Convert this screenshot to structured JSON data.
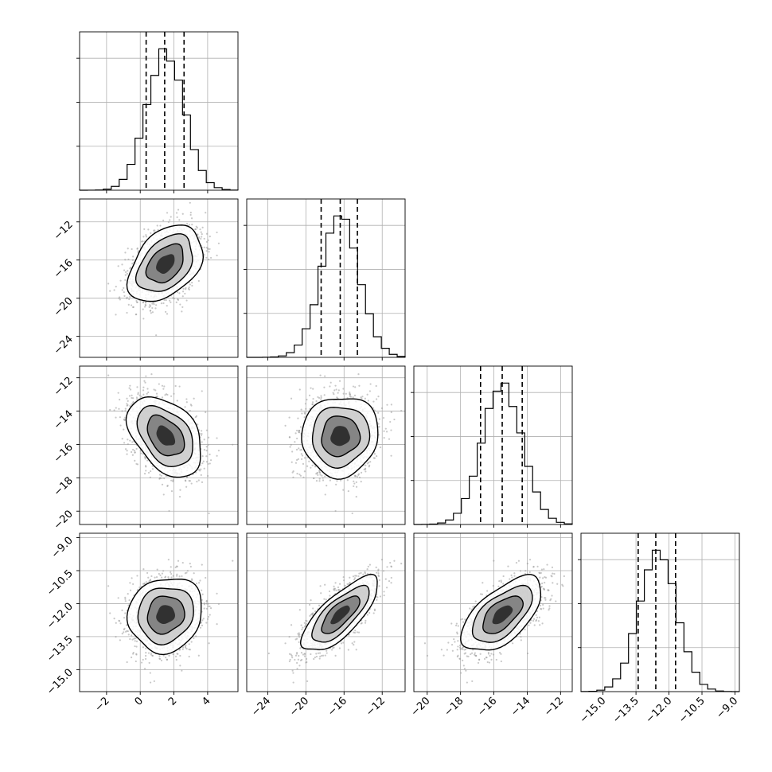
{
  "chart_data": {
    "type": "corner",
    "parameters": [
      {
        "range": [
          -3.6,
          5.8
        ],
        "ticks": [
          {
            "v": -2,
            "label": "−2"
          },
          {
            "v": 0,
            "label": "0"
          },
          {
            "v": 2,
            "label": "2"
          },
          {
            "v": 4,
            "label": "4"
          }
        ],
        "mean": 1.5,
        "sd": 1.1,
        "quantiles": [
          0.35,
          1.45,
          2.6
        ]
      },
      {
        "range": [
          -26.2,
          -9.6
        ],
        "ticks": [
          {
            "v": -24,
            "label": "−24"
          },
          {
            "v": -20,
            "label": "−20"
          },
          {
            "v": -16,
            "label": "−16"
          },
          {
            "v": -12,
            "label": "−12"
          }
        ],
        "mean": -16.4,
        "sd": 2.0,
        "quantiles": [
          -18.4,
          -16.4,
          -14.6
        ]
      },
      {
        "range": [
          -20.8,
          -11.3
        ],
        "ticks": [
          {
            "v": -20,
            "label": "−20"
          },
          {
            "v": -18,
            "label": "−18"
          },
          {
            "v": -16,
            "label": "−16"
          },
          {
            "v": -14,
            "label": "−14"
          },
          {
            "v": -12,
            "label": "−12"
          }
        ],
        "mean": -15.5,
        "sd": 1.2,
        "quantiles": [
          -16.8,
          -15.5,
          -14.3
        ]
      },
      {
        "range": [
          -16.0,
          -8.8
        ],
        "ticks": [
          {
            "v": -15.0,
            "label": "−15.0"
          },
          {
            "v": -13.5,
            "label": "−13.5"
          },
          {
            "v": -12.0,
            "label": "−12.0"
          },
          {
            "v": -10.5,
            "label": "−10.5"
          },
          {
            "v": -9.0,
            "label": "−9.0"
          }
        ],
        "mean": -12.5,
        "sd": 0.85,
        "quantiles": [
          -13.4,
          -12.6,
          -11.7
        ]
      }
    ],
    "correlations": [
      [
        1,
        0.4,
        -0.4,
        0.1
      ],
      [
        0.4,
        1,
        0.05,
        0.75
      ],
      [
        -0.4,
        0.05,
        1,
        0.6
      ],
      [
        0.1,
        0.75,
        0.6,
        1
      ]
    ],
    "hist_bins": 20,
    "grid": true,
    "colors": {
      "line": "#000000",
      "points": "#9a9a9a",
      "grid": "#b0b0b0"
    }
  }
}
